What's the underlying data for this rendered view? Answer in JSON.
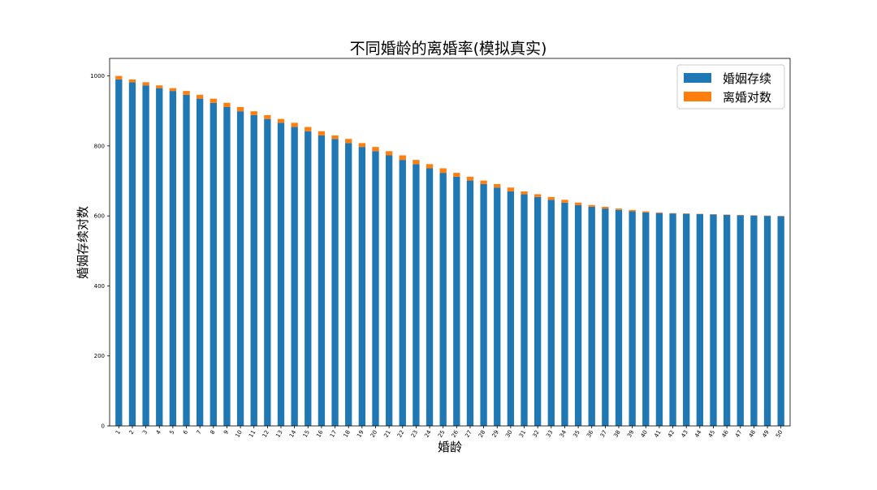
{
  "chart_data": {
    "type": "bar",
    "stacked": true,
    "title": "不同婚龄的离婚率(模拟真实)",
    "xlabel": "婚龄",
    "ylabel": "婚姻存续对数",
    "ylim": [
      0,
      1050
    ],
    "yticks": [
      0,
      200,
      400,
      600,
      800,
      1000
    ],
    "grid": false,
    "legend_position": "top-right",
    "categories": [
      "1",
      "2",
      "3",
      "4",
      "5",
      "6",
      "7",
      "8",
      "9",
      "10",
      "11",
      "12",
      "13",
      "14",
      "15",
      "16",
      "17",
      "18",
      "19",
      "20",
      "21",
      "22",
      "23",
      "24",
      "25",
      "26",
      "27",
      "28",
      "29",
      "30",
      "31",
      "32",
      "33",
      "34",
      "35",
      "36",
      "37",
      "38",
      "39",
      "40",
      "41",
      "42",
      "43",
      "44",
      "45",
      "46",
      "47",
      "48",
      "49",
      "50"
    ],
    "series": [
      {
        "name": "婚姻存续",
        "color": "#1f77b4",
        "values": [
          990,
          982,
          973,
          965,
          957,
          946,
          935,
          923,
          911,
          899,
          888,
          877,
          866,
          854,
          842,
          830,
          820,
          808,
          797,
          785,
          773,
          760,
          748,
          736,
          723,
          712,
          701,
          691,
          681,
          670,
          662,
          654,
          646,
          638,
          631,
          626,
          621,
          617,
          613,
          610,
          608,
          607,
          606,
          605,
          604,
          603,
          602,
          601,
          600,
          599
        ]
      },
      {
        "name": "离婚对数",
        "color": "#ff7f0e",
        "values": [
          10,
          8,
          9,
          8,
          8,
          11,
          11,
          12,
          12,
          12,
          11,
          11,
          11,
          12,
          12,
          12,
          10,
          12,
          11,
          12,
          12,
          13,
          12,
          12,
          13,
          11,
          11,
          10,
          10,
          11,
          8,
          8,
          8,
          8,
          7,
          5,
          5,
          4,
          4,
          3,
          2,
          1,
          1,
          1,
          1,
          1,
          1,
          1,
          1,
          1
        ]
      }
    ]
  }
}
